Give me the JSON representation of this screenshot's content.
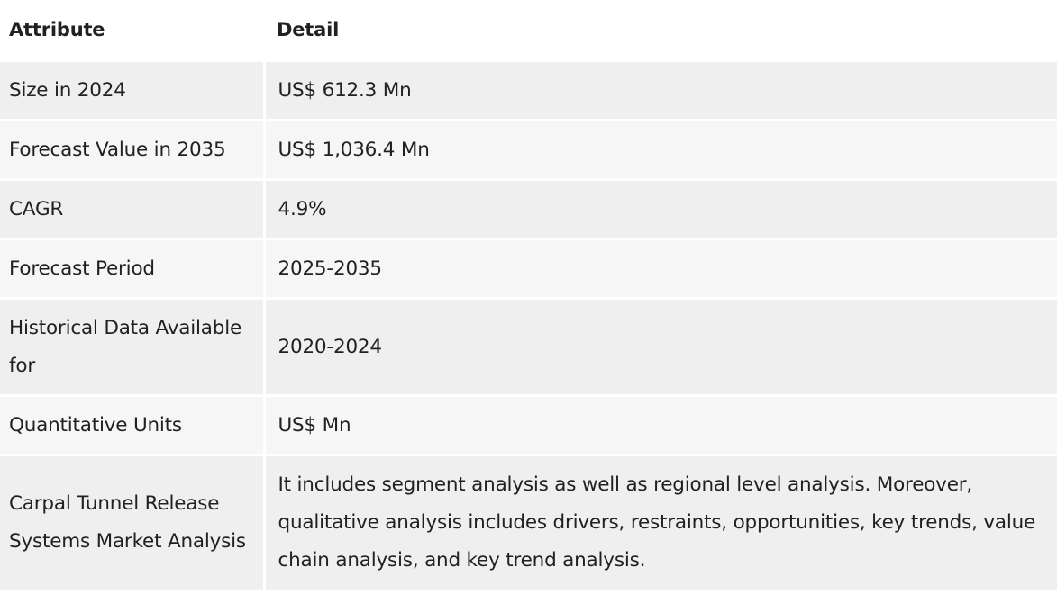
{
  "table": {
    "headers": {
      "attribute": "Attribute",
      "detail": "Detail"
    },
    "rows": [
      {
        "attribute": "Size in 2024",
        "detail": "US$ 612.3 Mn"
      },
      {
        "attribute": "Forecast Value in 2035",
        "detail": "US$ 1,036.4 Mn"
      },
      {
        "attribute": "CAGR",
        "detail": "4.9%"
      },
      {
        "attribute": "Forecast Period",
        "detail": "2025-2035"
      },
      {
        "attribute": "Historical Data Available for",
        "detail": "2020-2024"
      },
      {
        "attribute": "Quantitative Units",
        "detail": "US$ Mn"
      },
      {
        "attribute": "Carpal Tunnel Release Systems Market Analysis",
        "detail": "It includes segment analysis as well as regional level analysis. Moreover, qualitative analysis includes drivers, restraints, opportunities, key trends, value chain analysis, and key trend analysis."
      }
    ]
  }
}
